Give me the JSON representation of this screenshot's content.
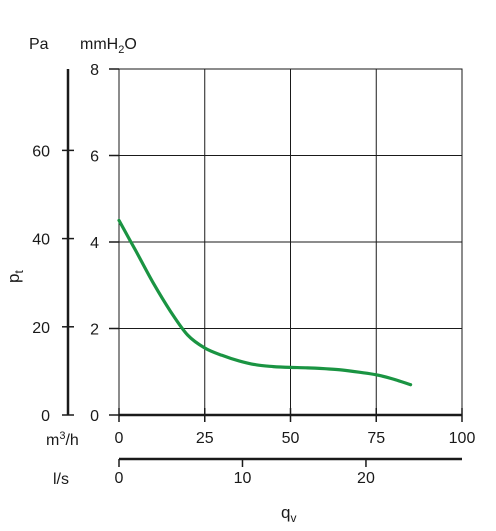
{
  "chart_data": {
    "type": "line",
    "ylabel": "p",
    "ylabel_sub": "t",
    "xlabel": "q",
    "xlabel_sub": "v",
    "left_axis_unit": "Pa",
    "right_axis_unit_base": "mmH",
    "right_axis_unit_sub": "2",
    "right_axis_unit_tail": "O",
    "x_unit_primary_base": "m",
    "x_unit_primary_sup": "3",
    "x_unit_primary_tail": "/h",
    "x_unit_secondary": "l/s",
    "x_ticks": [
      "0",
      "25",
      "50",
      "75",
      "100"
    ],
    "x_secondary_ticks": [
      "0",
      "10",
      "20"
    ],
    "y_ticks_mmh2o": [
      "0",
      "2",
      "4",
      "6",
      "8"
    ],
    "y_ticks_pa": [
      "0",
      "20",
      "40",
      "60"
    ],
    "xlim": [
      0,
      100
    ],
    "ylim_mmh2o": [
      0,
      8
    ],
    "grid": true,
    "series": [
      {
        "color": "#1a9442",
        "x": [
          0,
          5,
          10,
          15,
          20,
          25,
          30,
          35,
          40,
          45,
          50,
          55,
          60,
          65,
          70,
          75,
          80,
          85
        ],
        "y": [
          4.5,
          3.78,
          3.05,
          2.4,
          1.85,
          1.55,
          1.38,
          1.25,
          1.16,
          1.12,
          1.1,
          1.09,
          1.07,
          1.04,
          0.99,
          0.93,
          0.83,
          0.7
        ]
      }
    ]
  }
}
